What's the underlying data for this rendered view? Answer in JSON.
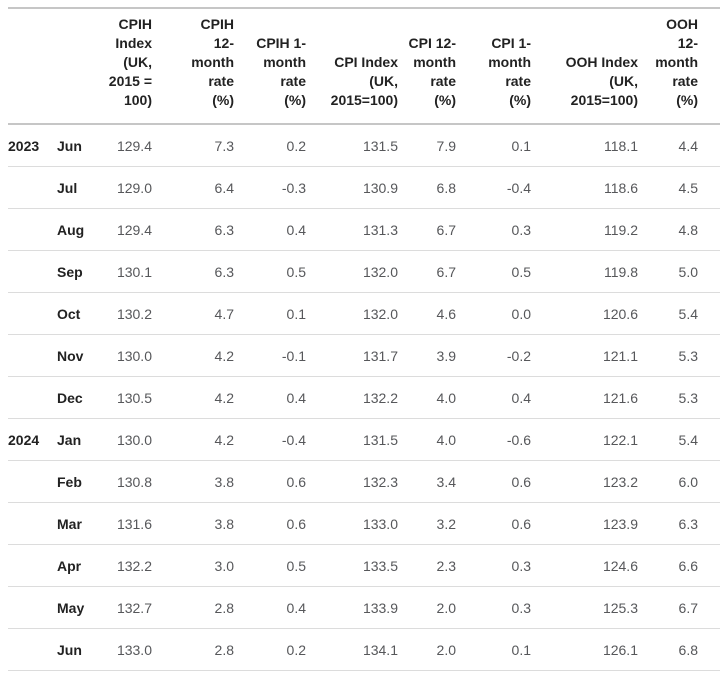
{
  "chart_data": {
    "type": "table",
    "columns": [
      {
        "id": "year",
        "label": "",
        "wrapped": ""
      },
      {
        "id": "month",
        "label": "",
        "wrapped": ""
      },
      {
        "id": "cpih-index",
        "label": "CPIH Index (UK, 2015 = 100)",
        "wrapped": "CPIH\nIndex\n(UK,\n2015 =\n100)"
      },
      {
        "id": "cpih-12-month-rate",
        "label": "CPIH 12-month rate (%)",
        "wrapped": "CPIH\n12-\nmonth\nrate\n(%)"
      },
      {
        "id": "cpih-1-month-rate",
        "label": "CPIH 1-month rate (%)",
        "wrapped": "CPIH 1-\nmonth\nrate\n(%)"
      },
      {
        "id": "cpi-index",
        "label": "CPI Index (UK, 2015=100)",
        "wrapped": "CPI Index\n(UK,\n2015=100)"
      },
      {
        "id": "cpi-12-month-rate",
        "label": "CPI 12-month rate (%)",
        "wrapped": "CPI 12-\nmonth\nrate\n(%)"
      },
      {
        "id": "cpi-1-month-rate",
        "label": "CPI 1-month rate (%)",
        "wrapped": "CPI 1-\nmonth\nrate\n(%)"
      },
      {
        "id": "ooh-index",
        "label": "OOH Index (UK, 2015=100)",
        "wrapped": "OOH Index\n(UK,\n2015=100)"
      },
      {
        "id": "ooh-12-month-rate",
        "label": "OOH 12-month rate (%)",
        "wrapped": "OOH\n12-\nmonth\nrate\n(%)"
      }
    ],
    "rows": [
      {
        "year": "2023",
        "month": "Jun",
        "values": [
          "129.4",
          "7.3",
          "0.2",
          "131.5",
          "7.9",
          "0.1",
          "118.1",
          "4.4"
        ]
      },
      {
        "year": "",
        "month": "Jul",
        "values": [
          "129.0",
          "6.4",
          "-0.3",
          "130.9",
          "6.8",
          "-0.4",
          "118.6",
          "4.5"
        ]
      },
      {
        "year": "",
        "month": "Aug",
        "values": [
          "129.4",
          "6.3",
          "0.4",
          "131.3",
          "6.7",
          "0.3",
          "119.2",
          "4.8"
        ]
      },
      {
        "year": "",
        "month": "Sep",
        "values": [
          "130.1",
          "6.3",
          "0.5",
          "132.0",
          "6.7",
          "0.5",
          "119.8",
          "5.0"
        ]
      },
      {
        "year": "",
        "month": "Oct",
        "values": [
          "130.2",
          "4.7",
          "0.1",
          "132.0",
          "4.6",
          "0.0",
          "120.6",
          "5.4"
        ]
      },
      {
        "year": "",
        "month": "Nov",
        "values": [
          "130.0",
          "4.2",
          "-0.1",
          "131.7",
          "3.9",
          "-0.2",
          "121.1",
          "5.3"
        ]
      },
      {
        "year": "",
        "month": "Dec",
        "values": [
          "130.5",
          "4.2",
          "0.4",
          "132.2",
          "4.0",
          "0.4",
          "121.6",
          "5.3"
        ]
      },
      {
        "year": "2024",
        "month": "Jan",
        "values": [
          "130.0",
          "4.2",
          "-0.4",
          "131.5",
          "4.0",
          "-0.6",
          "122.1",
          "5.4"
        ]
      },
      {
        "year": "",
        "month": "Feb",
        "values": [
          "130.8",
          "3.8",
          "0.6",
          "132.3",
          "3.4",
          "0.6",
          "123.2",
          "6.0"
        ]
      },
      {
        "year": "",
        "month": "Mar",
        "values": [
          "131.6",
          "3.8",
          "0.6",
          "133.0",
          "3.2",
          "0.6",
          "123.9",
          "6.3"
        ]
      },
      {
        "year": "",
        "month": "Apr",
        "values": [
          "132.2",
          "3.0",
          "0.5",
          "133.5",
          "2.3",
          "0.3",
          "124.6",
          "6.6"
        ]
      },
      {
        "year": "",
        "month": "May",
        "values": [
          "132.7",
          "2.8",
          "0.4",
          "133.9",
          "2.0",
          "0.3",
          "125.3",
          "6.7"
        ]
      },
      {
        "year": "",
        "month": "Jun",
        "values": [
          "133.0",
          "2.8",
          "0.2",
          "134.1",
          "2.0",
          "0.1",
          "126.1",
          "6.8"
        ]
      }
    ],
    "layout": {
      "grid": "horizontal-row-lines-only",
      "header_align": "right-bottom",
      "numeric_align": "right",
      "legend": "none"
    },
    "colors": {
      "header_text": "#222222",
      "month_year_text": "#222222",
      "value_text": "#56575a",
      "header_border": "#c6c6c6",
      "row_border": "#dcdcdc",
      "background": "#ffffff"
    }
  }
}
